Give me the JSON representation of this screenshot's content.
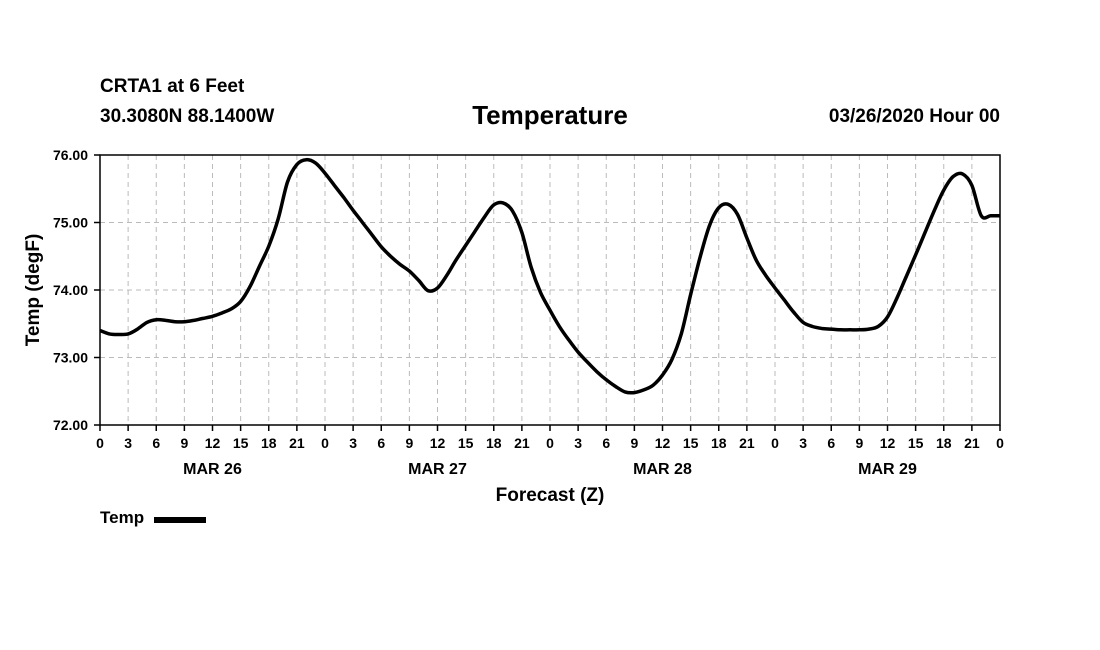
{
  "header": {
    "station": "CRTA1 at 6 Feet",
    "coordinates": "30.3080N 88.1400W",
    "title": "Temperature",
    "datetime": "03/26/2020 Hour 00"
  },
  "legend": {
    "label": "Temp",
    "color": "#000000"
  },
  "chart_data": {
    "type": "line",
    "title": "Temperature",
    "xlabel": "Forecast (Z)",
    "ylabel": "Temp (degF)",
    "xlim": [
      0,
      96
    ],
    "ylim": [
      72,
      76
    ],
    "grid": true,
    "legend_position": "bottom-left",
    "yticks": [
      72,
      73,
      74,
      75,
      76
    ],
    "ytick_labels": [
      "72.00",
      "73.00",
      "74.00",
      "75.00",
      "76.00"
    ],
    "xticks": [
      0,
      3,
      6,
      9,
      12,
      15,
      18,
      21,
      24,
      27,
      30,
      33,
      36,
      39,
      42,
      45,
      48,
      51,
      54,
      57,
      60,
      63,
      66,
      69,
      72,
      75,
      78,
      81,
      84,
      87,
      90,
      93,
      96
    ],
    "xtick_labels": [
      "0",
      "3",
      "6",
      "9",
      "12",
      "15",
      "18",
      "21",
      "0",
      "3",
      "6",
      "9",
      "12",
      "15",
      "18",
      "21",
      "0",
      "3",
      "6",
      "9",
      "12",
      "15",
      "18",
      "21",
      "0",
      "3",
      "6",
      "9",
      "12",
      "15",
      "18",
      "21",
      "0"
    ],
    "day_labels": [
      {
        "label": "MAR 26",
        "x": 12
      },
      {
        "label": "MAR 27",
        "x": 36
      },
      {
        "label": "MAR 28",
        "x": 60
      },
      {
        "label": "MAR 29",
        "x": 84
      }
    ],
    "series": [
      {
        "name": "Temp",
        "color": "#000000",
        "x": [
          0,
          1,
          2,
          3,
          4,
          5,
          6,
          7,
          8,
          9,
          10,
          11,
          12,
          13,
          14,
          15,
          16,
          17,
          18,
          19,
          20,
          21,
          22,
          23,
          24,
          25,
          26,
          27,
          28,
          29,
          30,
          31,
          32,
          33,
          34,
          35,
          36,
          37,
          38,
          39,
          40,
          41,
          42,
          43,
          44,
          45,
          46,
          47,
          48,
          49,
          50,
          51,
          52,
          53,
          54,
          55,
          56,
          57,
          58,
          59,
          60,
          61,
          62,
          63,
          64,
          65,
          66,
          67,
          68,
          69,
          70,
          71,
          72,
          73,
          74,
          75,
          76,
          77,
          78,
          79,
          80,
          81,
          82,
          83,
          84,
          85,
          86,
          87,
          88,
          89,
          90,
          91,
          92,
          93,
          94,
          95,
          96
        ],
        "values": [
          73.4,
          73.35,
          73.34,
          73.35,
          73.42,
          73.52,
          73.56,
          73.55,
          73.53,
          73.53,
          73.55,
          73.58,
          73.61,
          73.66,
          73.72,
          73.83,
          74.05,
          74.35,
          74.65,
          75.05,
          75.6,
          75.86,
          75.93,
          75.88,
          75.73,
          75.55,
          75.37,
          75.18,
          75.0,
          74.82,
          74.64,
          74.5,
          74.38,
          74.28,
          74.14,
          73.99,
          74.03,
          74.22,
          74.45,
          74.66,
          74.87,
          75.08,
          75.26,
          75.29,
          75.17,
          74.85,
          74.33,
          73.96,
          73.7,
          73.46,
          73.26,
          73.08,
          72.93,
          72.79,
          72.67,
          72.57,
          72.49,
          72.48,
          72.52,
          72.59,
          72.74,
          72.97,
          73.35,
          73.93,
          74.48,
          74.95,
          75.22,
          75.27,
          75.12,
          74.77,
          74.44,
          74.22,
          74.03,
          73.85,
          73.67,
          73.52,
          73.46,
          73.43,
          73.42,
          73.41,
          73.41,
          73.41,
          73.42,
          73.46,
          73.6,
          73.88,
          74.2,
          74.52,
          74.85,
          75.18,
          75.48,
          75.68,
          75.72,
          75.55,
          75.1,
          75.1,
          75.1
        ]
      }
    ]
  }
}
